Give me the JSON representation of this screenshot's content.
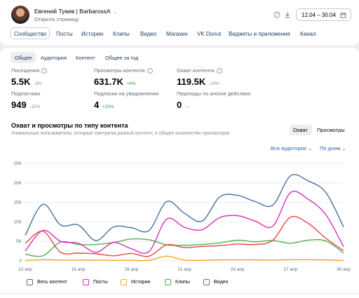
{
  "header": {
    "name": "Евгений Туаев | BarbarossA",
    "open_page": "Открыть страницу",
    "date_range": "12.04 – 30.04"
  },
  "nav": {
    "tabs": [
      "Сообщество",
      "Посты",
      "Истории",
      "Клипы",
      "Видео",
      "Магазин",
      "VK Donut",
      "Виджеты и приложения",
      "Канал"
    ]
  },
  "subnav": {
    "tabs": [
      "Общее",
      "Аудитория",
      "Контент",
      "Общее за год"
    ]
  },
  "metrics": [
    {
      "label": "Посещения",
      "value": "5.5K",
      "change": "-2%",
      "change_positive": false,
      "info": true
    },
    {
      "label": "Просмотры контента",
      "value": "631.7K",
      "change": "+4%",
      "change_positive": true,
      "info": true
    },
    {
      "label": "Охват контента",
      "value": "119.5K",
      "change": "-23%",
      "change_positive": false,
      "info": true
    },
    {
      "label": "Подписчики",
      "value": "949",
      "change": "-11%",
      "change_positive": false,
      "info": false
    },
    {
      "label": "Подписки на уведомления",
      "value": "4",
      "change": "+33%",
      "change_positive": true,
      "info": false
    },
    {
      "label": "Переходы по кнопке действия",
      "value": "0",
      "change": "—",
      "change_positive": false,
      "info": false
    }
  ],
  "section": {
    "title": "Охват и просмотры по типу контента",
    "subtitle": "Уникальные пользователи, которые смотрели разный контент, и общее количество просмотров",
    "toggle": [
      "Охват",
      "Просмотры"
    ],
    "audience_dropdown": "Вся аудитория",
    "period_dropdown": "По дням"
  },
  "colors": {
    "accent": "#2d64b0",
    "positive": "#2ea043"
  },
  "chart_data": {
    "type": "line",
    "x": [
      "12 апр",
      "13 апр",
      "14 апр",
      "15 апр",
      "16 апр",
      "17 апр",
      "18 апр",
      "19 апр",
      "20 апр",
      "21 апр",
      "22 апр",
      "23 апр",
      "24 апр",
      "25 апр",
      "26 апр",
      "27 апр",
      "28 апр",
      "29 апр",
      "30 апр"
    ],
    "x_tick_labels": [
      "12 апр",
      "15 апр",
      "18 апр",
      "21 апр",
      "24 апр",
      "27 апр",
      "30 апр"
    ],
    "y_ticks": [
      "0",
      "5K",
      "10K",
      "15K",
      "20K",
      "25K"
    ],
    "ylim": [
      0,
      25000
    ],
    "grid": true,
    "legend_position": "bottom",
    "series": [
      {
        "name": "Весь контент",
        "color": "#4a6f9a",
        "values": [
          6500,
          14500,
          9200,
          9200,
          5200,
          8700,
          8500,
          7800,
          15200,
          12200,
          10200,
          16400,
          16800,
          15200,
          14300,
          21800,
          20500,
          17500,
          8700
        ]
      },
      {
        "name": "Посты",
        "color": "#d62fbe",
        "values": [
          2500,
          7800,
          5000,
          4500,
          2200,
          4700,
          3100,
          2400,
          10700,
          8600,
          8000,
          11100,
          11600,
          10200,
          8900,
          17500,
          15800,
          11800,
          3600
        ]
      },
      {
        "name": "Истории",
        "color": "#f5a623",
        "values": [
          100,
          300,
          200,
          200,
          200,
          150,
          150,
          150,
          1200,
          200,
          150,
          250,
          250,
          250,
          200,
          300,
          300,
          250,
          100
        ]
      },
      {
        "name": "Клипы",
        "color": "#4bb34b",
        "values": [
          1700,
          1300,
          4800,
          4200,
          4200,
          4700,
          5600,
          5400,
          4100,
          4000,
          4200,
          4600,
          5300,
          4900,
          5200,
          4500,
          5300,
          5100,
          2000
        ]
      },
      {
        "name": "Видео",
        "color": "#e64646",
        "values": [
          4500,
          7600,
          2200,
          2000,
          1800,
          1300,
          1900,
          1200,
          4100,
          3400,
          3700,
          3900,
          4300,
          4200,
          5300,
          11200,
          9600,
          5800,
          2600
        ]
      }
    ]
  }
}
